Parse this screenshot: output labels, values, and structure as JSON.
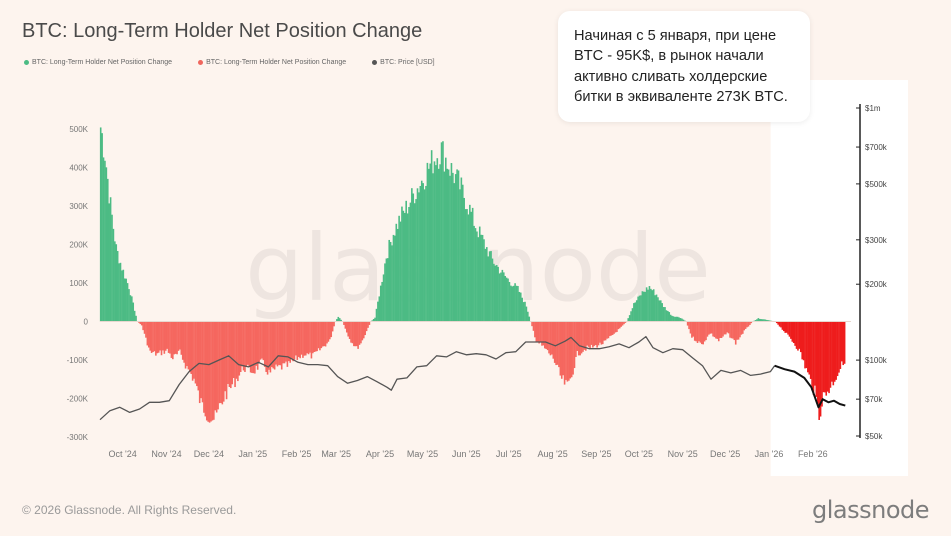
{
  "title": "BTC: Long-Term Holder Net Position Change",
  "legend": [
    {
      "label": "BTC: Long-Term Holder Net Position Change",
      "color": "#4cbb84"
    },
    {
      "label": "BTC: Long-Term Holder Net Position Change",
      "color": "#f0665d"
    },
    {
      "label": "BTC: Price [USD]",
      "color": "#555555"
    }
  ],
  "callout": {
    "text": "Начиная с 5 января, при цене BTC - 95K$, в рынок начали активно сливать холдерские битки в эквиваленте 273K BTC."
  },
  "watermark": "glassnode",
  "footer": {
    "copyright": "© 2026 Glassnode. All Rights Reserved.",
    "brand": "glassnode"
  },
  "colors": {
    "positive": "#4cbb84",
    "negative": "#f5675f",
    "highlight_negative": "#ee1c1c",
    "price": "#555555",
    "highlight_price": "#111111",
    "highlight_bg": "#ffffff"
  },
  "chart_data": {
    "type": "area",
    "x_range": [
      "2024-09-15",
      "2026-02-28"
    ],
    "highlight_start": "2026-01-05",
    "x_ticks": [
      {
        "date": "2024-10-01",
        "label": "Oct '24"
      },
      {
        "date": "2024-11-01",
        "label": "Nov '24"
      },
      {
        "date": "2024-12-01",
        "label": "Dec '24"
      },
      {
        "date": "2025-01-01",
        "label": "Jan '25"
      },
      {
        "date": "2025-02-01",
        "label": "Feb '25"
      },
      {
        "date": "2025-03-01",
        "label": "Mar '25"
      },
      {
        "date": "2025-04-01",
        "label": "Apr '25"
      },
      {
        "date": "2025-05-01",
        "label": "May '25"
      },
      {
        "date": "2025-06-01",
        "label": "Jun '25"
      },
      {
        "date": "2025-07-01",
        "label": "Jul '25"
      },
      {
        "date": "2025-08-01",
        "label": "Aug '25"
      },
      {
        "date": "2025-09-01",
        "label": "Sep '25"
      },
      {
        "date": "2025-10-01",
        "label": "Oct '25"
      },
      {
        "date": "2025-11-01",
        "label": "Nov '25"
      },
      {
        "date": "2025-12-01",
        "label": "Dec '25"
      },
      {
        "date": "2026-01-01",
        "label": "Jan '26"
      },
      {
        "date": "2026-02-01",
        "label": "Feb '26"
      }
    ],
    "left_axis": {
      "range": [
        -300000,
        500000
      ],
      "ticks": [
        {
          "value": 500000,
          "label": "500K"
        },
        {
          "value": 400000,
          "label": "400K"
        },
        {
          "value": 300000,
          "label": "300K"
        },
        {
          "value": 200000,
          "label": "200K"
        },
        {
          "value": 100000,
          "label": "100K"
        },
        {
          "value": 0,
          "label": "0"
        },
        {
          "value": -100000,
          "label": "-100K"
        },
        {
          "value": -200000,
          "label": "-200K"
        },
        {
          "value": -300000,
          "label": "-300K"
        }
      ]
    },
    "right_axis": {
      "scale": "log",
      "range": [
        50000,
        1000000
      ],
      "ticks": [
        {
          "value": 1000000,
          "label": "$1m"
        },
        {
          "value": 700000,
          "label": "$700k"
        },
        {
          "value": 500000,
          "label": "$500k"
        },
        {
          "value": 300000,
          "label": "$300k"
        },
        {
          "value": 200000,
          "label": "$200k"
        },
        {
          "value": 100000,
          "label": "$100k"
        },
        {
          "value": 70000,
          "label": "$70k"
        },
        {
          "value": 50000,
          "label": "$50k"
        }
      ]
    },
    "series": [
      {
        "name": "BTC: Long-Term Holder Net Position Change",
        "points": [
          [
            "2024-09-15",
            505000
          ],
          [
            "2024-09-18",
            440000
          ],
          [
            "2024-09-22",
            300000
          ],
          [
            "2024-09-26",
            190000
          ],
          [
            "2024-09-30",
            140000
          ],
          [
            "2024-10-05",
            90000
          ],
          [
            "2024-10-08",
            45000
          ],
          [
            "2024-10-11",
            0
          ],
          [
            "2024-10-14",
            -10000
          ],
          [
            "2024-10-20",
            -80000
          ],
          [
            "2024-10-25",
            -85000
          ],
          [
            "2024-11-01",
            -75000
          ],
          [
            "2024-11-05",
            -95000
          ],
          [
            "2024-11-10",
            -80000
          ],
          [
            "2024-11-15",
            -120000
          ],
          [
            "2024-11-20",
            -150000
          ],
          [
            "2024-11-25",
            -215000
          ],
          [
            "2024-12-01",
            -245000
          ],
          [
            "2024-12-05",
            -255000
          ],
          [
            "2024-12-08",
            -225000
          ],
          [
            "2024-12-12",
            -190000
          ],
          [
            "2024-12-15",
            -175000
          ],
          [
            "2024-12-20",
            -150000
          ],
          [
            "2024-12-25",
            -120000
          ],
          [
            "2025-01-01",
            -130000
          ],
          [
            "2025-01-07",
            -105000
          ],
          [
            "2025-01-12",
            -135000
          ],
          [
            "2025-01-18",
            -120000
          ],
          [
            "2025-01-25",
            -115000
          ],
          [
            "2025-02-01",
            -95000
          ],
          [
            "2025-02-06",
            -85000
          ],
          [
            "2025-02-12",
            -90000
          ],
          [
            "2025-02-18",
            -70000
          ],
          [
            "2025-02-24",
            -50000
          ],
          [
            "2025-02-28",
            0
          ],
          [
            "2025-03-02",
            12000
          ],
          [
            "2025-03-05",
            0
          ],
          [
            "2025-03-10",
            -45000
          ],
          [
            "2025-03-15",
            -70000
          ],
          [
            "2025-03-19",
            -50000
          ],
          [
            "2025-03-22",
            -25000
          ],
          [
            "2025-03-25",
            0
          ],
          [
            "2025-03-28",
            10000
          ],
          [
            "2025-04-01",
            90000
          ],
          [
            "2025-04-05",
            170000
          ],
          [
            "2025-04-10",
            230000
          ],
          [
            "2025-04-15",
            270000
          ],
          [
            "2025-04-20",
            300000
          ],
          [
            "2025-04-25",
            335000
          ],
          [
            "2025-04-30",
            365000
          ],
          [
            "2025-05-05",
            400000
          ],
          [
            "2025-05-10",
            430000
          ],
          [
            "2025-05-14",
            445000
          ],
          [
            "2025-05-20",
            400000
          ],
          [
            "2025-05-26",
            360000
          ],
          [
            "2025-06-01",
            310000
          ],
          [
            "2025-06-07",
            250000
          ],
          [
            "2025-06-13",
            205000
          ],
          [
            "2025-06-19",
            160000
          ],
          [
            "2025-06-25",
            130000
          ],
          [
            "2025-07-01",
            105000
          ],
          [
            "2025-07-07",
            85000
          ],
          [
            "2025-07-13",
            40000
          ],
          [
            "2025-07-16",
            0
          ],
          [
            "2025-07-20",
            -50000
          ],
          [
            "2025-07-26",
            -70000
          ],
          [
            "2025-08-01",
            -95000
          ],
          [
            "2025-08-07",
            -150000
          ],
          [
            "2025-08-11",
            -170000
          ],
          [
            "2025-08-14",
            -140000
          ],
          [
            "2025-08-18",
            -85000
          ],
          [
            "2025-08-24",
            -70000
          ],
          [
            "2025-08-30",
            -65000
          ],
          [
            "2025-09-06",
            -55000
          ],
          [
            "2025-09-12",
            -35000
          ],
          [
            "2025-09-18",
            -15000
          ],
          [
            "2025-09-22",
            0
          ],
          [
            "2025-09-27",
            45000
          ],
          [
            "2025-10-03",
            75000
          ],
          [
            "2025-10-08",
            90000
          ],
          [
            "2025-10-13",
            70000
          ],
          [
            "2025-10-18",
            40000
          ],
          [
            "2025-10-24",
            15000
          ],
          [
            "2025-10-30",
            10000
          ],
          [
            "2025-11-03",
            0
          ],
          [
            "2025-11-07",
            -40000
          ],
          [
            "2025-11-14",
            -60000
          ],
          [
            "2025-11-20",
            -30000
          ],
          [
            "2025-11-26",
            -50000
          ],
          [
            "2025-12-02",
            -30000
          ],
          [
            "2025-12-08",
            -55000
          ],
          [
            "2025-12-14",
            -25000
          ],
          [
            "2025-12-20",
            0
          ],
          [
            "2025-12-24",
            8000
          ],
          [
            "2025-12-29",
            5000
          ],
          [
            "2026-01-05",
            0
          ],
          [
            "2026-01-10",
            -20000
          ],
          [
            "2026-01-16",
            -45000
          ],
          [
            "2026-01-22",
            -75000
          ],
          [
            "2026-01-28",
            -135000
          ],
          [
            "2026-02-02",
            -185000
          ],
          [
            "2026-02-05",
            -240000
          ],
          [
            "2026-02-08",
            -195000
          ],
          [
            "2026-02-13",
            -170000
          ],
          [
            "2026-02-18",
            -135000
          ],
          [
            "2026-02-23",
            -100000
          ]
        ]
      },
      {
        "name": "BTC: Price [USD]",
        "points": [
          [
            "2024-09-15",
            58000
          ],
          [
            "2024-09-22",
            63000
          ],
          [
            "2024-09-29",
            65000
          ],
          [
            "2024-10-06",
            62000
          ],
          [
            "2024-10-13",
            64000
          ],
          [
            "2024-10-20",
            68000
          ],
          [
            "2024-10-27",
            68000
          ],
          [
            "2024-11-03",
            69000
          ],
          [
            "2024-11-10",
            80000
          ],
          [
            "2024-11-17",
            90000
          ],
          [
            "2024-11-24",
            97000
          ],
          [
            "2024-12-01",
            96000
          ],
          [
            "2024-12-08",
            100000
          ],
          [
            "2024-12-15",
            104000
          ],
          [
            "2024-12-22",
            96000
          ],
          [
            "2024-12-29",
            94000
          ],
          [
            "2025-01-05",
            98000
          ],
          [
            "2025-01-12",
            94000
          ],
          [
            "2025-01-19",
            104000
          ],
          [
            "2025-01-26",
            103000
          ],
          [
            "2025-02-02",
            98000
          ],
          [
            "2025-02-09",
            96000
          ],
          [
            "2025-02-16",
            96000
          ],
          [
            "2025-02-23",
            95000
          ],
          [
            "2025-03-02",
            86000
          ],
          [
            "2025-03-09",
            81000
          ],
          [
            "2025-03-16",
            83000
          ],
          [
            "2025-03-23",
            86000
          ],
          [
            "2025-03-30",
            82000
          ],
          [
            "2025-04-06",
            78000
          ],
          [
            "2025-04-09",
            76000
          ],
          [
            "2025-04-13",
            84000
          ],
          [
            "2025-04-20",
            85000
          ],
          [
            "2025-04-27",
            94000
          ],
          [
            "2025-05-04",
            95000
          ],
          [
            "2025-05-11",
            104000
          ],
          [
            "2025-05-18",
            103000
          ],
          [
            "2025-05-25",
            108000
          ],
          [
            "2025-06-01",
            105000
          ],
          [
            "2025-06-08",
            106000
          ],
          [
            "2025-06-15",
            105000
          ],
          [
            "2025-06-22",
            101000
          ],
          [
            "2025-06-29",
            107000
          ],
          [
            "2025-07-06",
            108000
          ],
          [
            "2025-07-13",
            118000
          ],
          [
            "2025-07-20",
            118000
          ],
          [
            "2025-07-27",
            118000
          ],
          [
            "2025-08-03",
            114000
          ],
          [
            "2025-08-10",
            119000
          ],
          [
            "2025-08-14",
            123000
          ],
          [
            "2025-08-20",
            114000
          ],
          [
            "2025-08-27",
            111000
          ],
          [
            "2025-09-03",
            111000
          ],
          [
            "2025-09-10",
            113000
          ],
          [
            "2025-09-17",
            116000
          ],
          [
            "2025-09-24",
            112000
          ],
          [
            "2025-10-01",
            118000
          ],
          [
            "2025-10-06",
            124000
          ],
          [
            "2025-10-11",
            112000
          ],
          [
            "2025-10-18",
            107000
          ],
          [
            "2025-10-25",
            111000
          ],
          [
            "2025-11-01",
            110000
          ],
          [
            "2025-11-08",
            102000
          ],
          [
            "2025-11-15",
            95000
          ],
          [
            "2025-11-21",
            84000
          ],
          [
            "2025-11-28",
            91000
          ],
          [
            "2025-12-05",
            89000
          ],
          [
            "2025-12-12",
            91000
          ],
          [
            "2025-12-19",
            87000
          ],
          [
            "2025-12-26",
            88000
          ],
          [
            "2026-01-02",
            90000
          ],
          [
            "2026-01-05",
            95000
          ],
          [
            "2026-01-12",
            92000
          ],
          [
            "2026-01-19",
            90000
          ],
          [
            "2026-01-26",
            85000
          ],
          [
            "2026-01-31",
            78000
          ],
          [
            "2026-02-05",
            65000
          ],
          [
            "2026-02-08",
            70000
          ],
          [
            "2026-02-12",
            68000
          ],
          [
            "2026-02-16",
            69000
          ],
          [
            "2026-02-20",
            67000
          ],
          [
            "2026-02-24",
            66000
          ]
        ]
      }
    ]
  }
}
